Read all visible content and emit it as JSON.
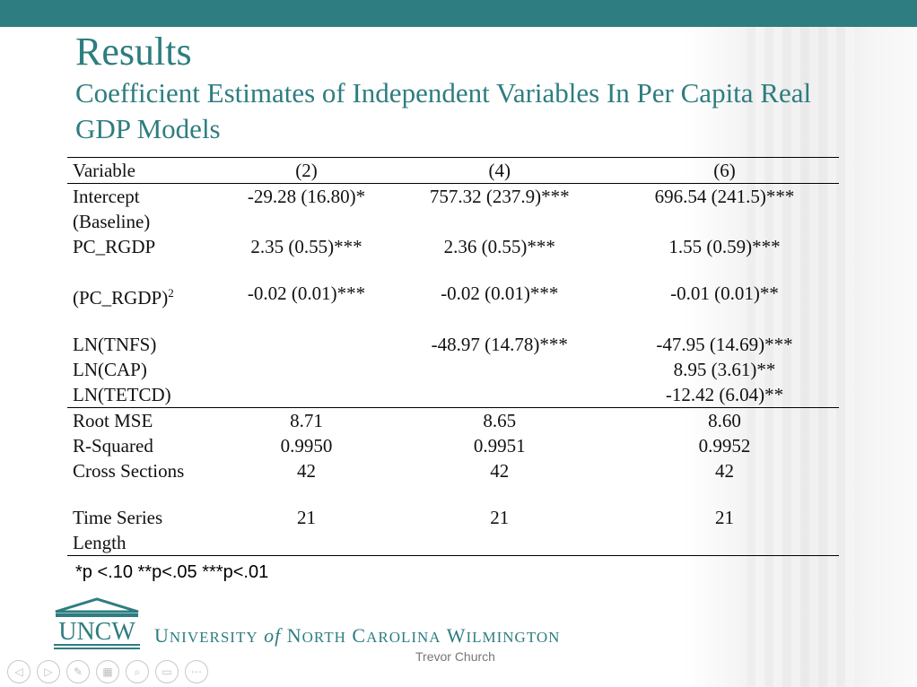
{
  "slide": {
    "title": "Results",
    "subtitle": "Coefficient Estimates of Independent Variables In Per Capita Real GDP Models",
    "footnote": "*p <.10 **p<.05 ***p<.01",
    "presenter": "Trevor Church"
  },
  "colors": {
    "accent": "#2e7d80",
    "text": "#111111"
  },
  "table": {
    "header": [
      "Variable",
      "(2)",
      "(4)",
      "(6)"
    ],
    "rows": {
      "intercept": [
        "Intercept",
        "-29.28 (16.80)*",
        "757.32 (237.9)***",
        "696.54 (241.5)***"
      ],
      "baseline": "(Baseline)",
      "pc_rgdp": [
        "PC_RGDP",
        "2.35 (0.55)***",
        "2.36 (0.55)***",
        "1.55 (0.59)***"
      ],
      "pc_rgdp_sq": {
        "label": "(PC_RGDP)",
        "sup": "2",
        "c1": "-0.02 (0.01)***",
        "c2": "-0.02 (0.01)***",
        "c3": "-0.01 (0.01)**"
      },
      "ln_tnfs": [
        "LN(TNFS)",
        "",
        "-48.97 (14.78)***",
        "-47.95 (14.69)***"
      ],
      "ln_cap": [
        "LN(CAP)",
        "",
        "",
        "8.95 (3.61)**"
      ],
      "ln_tetcd": [
        "LN(TETCD)",
        "",
        "",
        "-12.42 (6.04)**"
      ],
      "root_mse": [
        "Root MSE",
        "8.71",
        "8.65",
        "8.60"
      ],
      "r_squared": [
        "R-Squared",
        "0.9950",
        "0.9951",
        "0.9952"
      ],
      "cross_sections": [
        "Cross Sections",
        "42",
        "42",
        "42"
      ],
      "time_series": [
        "Time Series",
        "21",
        "21",
        "21"
      ],
      "length": "Length"
    }
  },
  "footer": {
    "logo_text": "UNCW",
    "univ_u": "U",
    "univ_niversity": "NIVERSITY",
    "univ_of": "of",
    "univ_n": "N",
    "univ_orth": "ORTH",
    "univ_c": "C",
    "univ_arolina": "AROLINA",
    "univ_w": "W",
    "univ_ilmington": "ILMINGTON"
  },
  "controls": [
    {
      "name": "prev-icon",
      "glyph": "◁"
    },
    {
      "name": "next-icon",
      "glyph": "▷"
    },
    {
      "name": "pen-icon",
      "glyph": "✎"
    },
    {
      "name": "slides-icon",
      "glyph": "▦"
    },
    {
      "name": "zoom-icon",
      "glyph": "⌕"
    },
    {
      "name": "subtitles-icon",
      "glyph": "▭"
    },
    {
      "name": "more-icon",
      "glyph": "⋯"
    }
  ]
}
